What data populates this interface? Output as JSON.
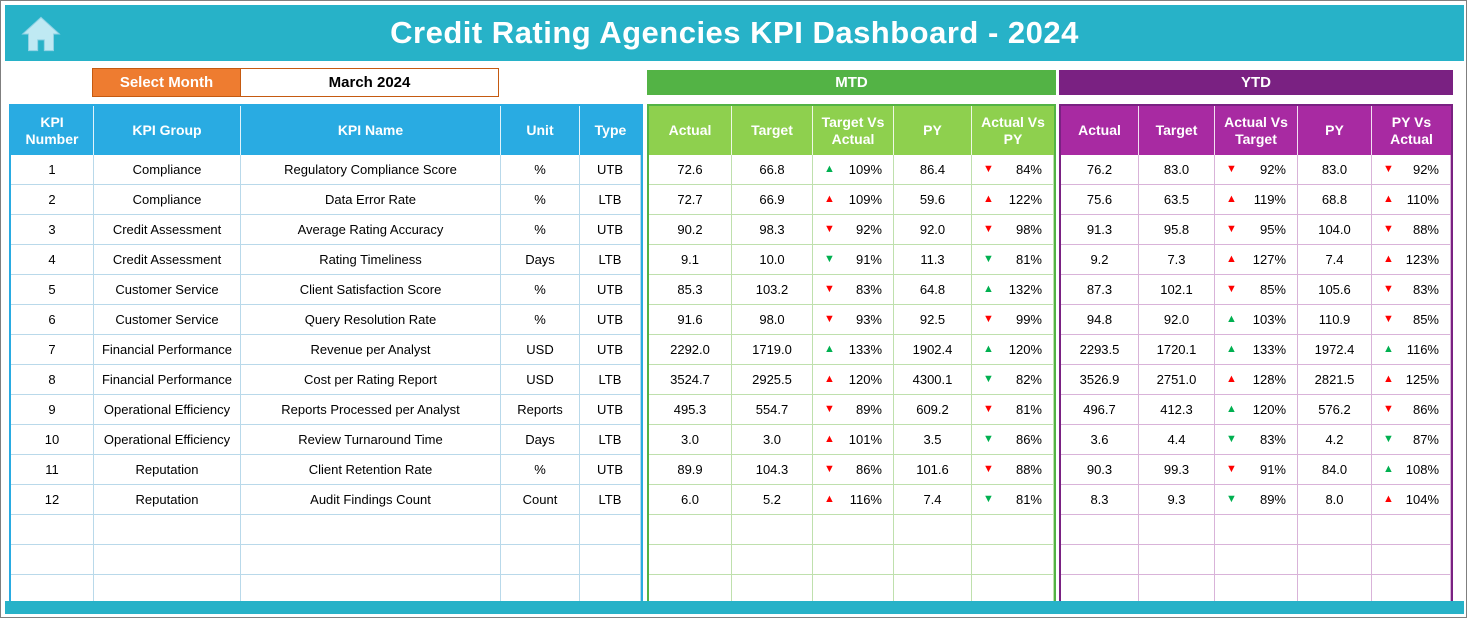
{
  "header": {
    "title": "Credit Rating Agencies KPI Dashboard - 2024"
  },
  "month_selector": {
    "label": "Select Month",
    "value": "March 2024"
  },
  "mtd": {
    "banner": "MTD",
    "headers": [
      "Actual",
      "Target",
      "Target Vs Actual",
      "PY",
      "Actual Vs PY"
    ]
  },
  "ytd": {
    "banner": "YTD",
    "headers": [
      "Actual",
      "Target",
      "Actual Vs Target",
      "PY",
      "PY Vs Actual"
    ]
  },
  "kpi_table": {
    "headers": [
      "KPI Number",
      "KPI Group",
      "KPI Name",
      "Unit",
      "Type"
    ],
    "empty_rows": 3,
    "rows": [
      {
        "num": "1",
        "group": "Compliance",
        "name": "Regulatory Compliance Score",
        "unit": "%",
        "type": "UTB",
        "mtd": [
          "72.6",
          "66.8",
          [
            "up",
            "green",
            "109%"
          ],
          "86.4",
          [
            "down",
            "red",
            "84%"
          ]
        ],
        "ytd": [
          "76.2",
          "83.0",
          [
            "down",
            "red",
            "92%"
          ],
          "83.0",
          [
            "down",
            "red",
            "92%"
          ]
        ]
      },
      {
        "num": "2",
        "group": "Compliance",
        "name": "Data Error Rate",
        "unit": "%",
        "type": "LTB",
        "mtd": [
          "72.7",
          "66.9",
          [
            "up",
            "red",
            "109%"
          ],
          "59.6",
          [
            "up",
            "red",
            "122%"
          ]
        ],
        "ytd": [
          "75.6",
          "63.5",
          [
            "up",
            "red",
            "119%"
          ],
          "68.8",
          [
            "up",
            "red",
            "110%"
          ]
        ]
      },
      {
        "num": "3",
        "group": "Credit Assessment",
        "name": "Average Rating Accuracy",
        "unit": "%",
        "type": "UTB",
        "mtd": [
          "90.2",
          "98.3",
          [
            "down",
            "red",
            "92%"
          ],
          "92.0",
          [
            "down",
            "red",
            "98%"
          ]
        ],
        "ytd": [
          "91.3",
          "95.8",
          [
            "down",
            "red",
            "95%"
          ],
          "104.0",
          [
            "down",
            "red",
            "88%"
          ]
        ]
      },
      {
        "num": "4",
        "group": "Credit Assessment",
        "name": "Rating Timeliness",
        "unit": "Days",
        "type": "LTB",
        "mtd": [
          "9.1",
          "10.0",
          [
            "down",
            "green",
            "91%"
          ],
          "11.3",
          [
            "down",
            "green",
            "81%"
          ]
        ],
        "ytd": [
          "9.2",
          "7.3",
          [
            "up",
            "red",
            "127%"
          ],
          "7.4",
          [
            "up",
            "red",
            "123%"
          ]
        ]
      },
      {
        "num": "5",
        "group": "Customer Service",
        "name": "Client Satisfaction Score",
        "unit": "%",
        "type": "UTB",
        "mtd": [
          "85.3",
          "103.2",
          [
            "down",
            "red",
            "83%"
          ],
          "64.8",
          [
            "up",
            "green",
            "132%"
          ]
        ],
        "ytd": [
          "87.3",
          "102.1",
          [
            "down",
            "red",
            "85%"
          ],
          "105.6",
          [
            "down",
            "red",
            "83%"
          ]
        ]
      },
      {
        "num": "6",
        "group": "Customer Service",
        "name": "Query Resolution Rate",
        "unit": "%",
        "type": "UTB",
        "mtd": [
          "91.6",
          "98.0",
          [
            "down",
            "red",
            "93%"
          ],
          "92.5",
          [
            "down",
            "red",
            "99%"
          ]
        ],
        "ytd": [
          "94.8",
          "92.0",
          [
            "up",
            "green",
            "103%"
          ],
          "110.9",
          [
            "down",
            "red",
            "85%"
          ]
        ]
      },
      {
        "num": "7",
        "group": "Financial Performance",
        "name": "Revenue per Analyst",
        "unit": "USD",
        "type": "UTB",
        "mtd": [
          "2292.0",
          "1719.0",
          [
            "up",
            "green",
            "133%"
          ],
          "1902.4",
          [
            "up",
            "green",
            "120%"
          ]
        ],
        "ytd": [
          "2293.5",
          "1720.1",
          [
            "up",
            "green",
            "133%"
          ],
          "1972.4",
          [
            "up",
            "green",
            "116%"
          ]
        ]
      },
      {
        "num": "8",
        "group": "Financial Performance",
        "name": "Cost per Rating Report",
        "unit": "USD",
        "type": "LTB",
        "mtd": [
          "3524.7",
          "2925.5",
          [
            "up",
            "red",
            "120%"
          ],
          "4300.1",
          [
            "down",
            "green",
            "82%"
          ]
        ],
        "ytd": [
          "3526.9",
          "2751.0",
          [
            "up",
            "red",
            "128%"
          ],
          "2821.5",
          [
            "up",
            "red",
            "125%"
          ]
        ]
      },
      {
        "num": "9",
        "group": "Operational Efficiency",
        "name": "Reports Processed per Analyst",
        "unit": "Reports",
        "type": "UTB",
        "mtd": [
          "495.3",
          "554.7",
          [
            "down",
            "red",
            "89%"
          ],
          "609.2",
          [
            "down",
            "red",
            "81%"
          ]
        ],
        "ytd": [
          "496.7",
          "412.3",
          [
            "up",
            "green",
            "120%"
          ],
          "576.2",
          [
            "down",
            "red",
            "86%"
          ]
        ]
      },
      {
        "num": "10",
        "group": "Operational Efficiency",
        "name": "Review Turnaround Time",
        "unit": "Days",
        "type": "LTB",
        "mtd": [
          "3.0",
          "3.0",
          [
            "up",
            "red",
            "101%"
          ],
          "3.5",
          [
            "down",
            "green",
            "86%"
          ]
        ],
        "ytd": [
          "3.6",
          "4.4",
          [
            "down",
            "green",
            "83%"
          ],
          "4.2",
          [
            "down",
            "green",
            "87%"
          ]
        ]
      },
      {
        "num": "11",
        "group": "Reputation",
        "name": "Client Retention Rate",
        "unit": "%",
        "type": "UTB",
        "mtd": [
          "89.9",
          "104.3",
          [
            "down",
            "red",
            "86%"
          ],
          "101.6",
          [
            "down",
            "red",
            "88%"
          ]
        ],
        "ytd": [
          "90.3",
          "99.3",
          [
            "down",
            "red",
            "91%"
          ],
          "84.0",
          [
            "up",
            "green",
            "108%"
          ]
        ]
      },
      {
        "num": "12",
        "group": "Reputation",
        "name": "Audit Findings Count",
        "unit": "Count",
        "type": "LTB",
        "mtd": [
          "6.0",
          "5.2",
          [
            "up",
            "red",
            "116%"
          ],
          "7.4",
          [
            "down",
            "green",
            "81%"
          ]
        ],
        "ytd": [
          "8.3",
          "9.3",
          [
            "down",
            "green",
            "89%"
          ],
          "8.0",
          [
            "up",
            "red",
            "104%"
          ]
        ]
      }
    ]
  },
  "colors": {
    "teal_bar": "#27b2c8",
    "orange_button": "#ee7c30",
    "blue_header": "#29abe2",
    "mtd_banner_green": "#53b345",
    "mtd_header_green": "#8ed04e",
    "ytd_banner_purple": "#7a2182",
    "ytd_header_purple": "#a82aa2",
    "arrow_good_green": "#00b050",
    "arrow_bad_red": "#ff0000"
  },
  "icons": {
    "home": "home-icon",
    "up": "up-triangle-icon",
    "down": "down-triangle-icon"
  }
}
